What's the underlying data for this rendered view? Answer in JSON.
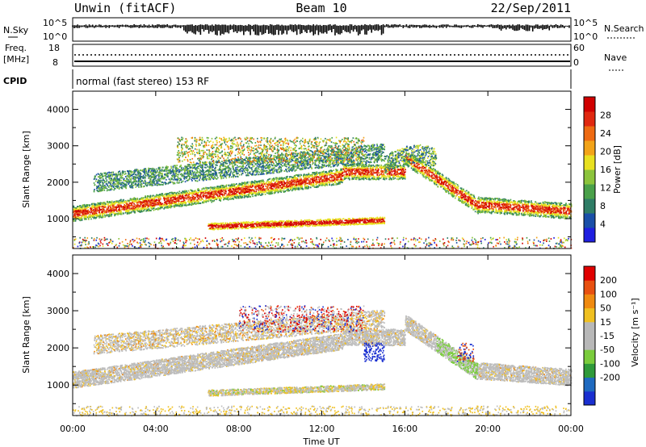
{
  "header": {
    "radar": "Unwin (fitACF)",
    "beam": "Beam 10",
    "date": "22/Sep/2011"
  },
  "top_panels": {
    "nsky_label": "N.Sky",
    "nsearch_label": "N.Search",
    "noise_ticks_left": [
      "10^5",
      "10^0"
    ],
    "noise_ticks_right": [
      "10^5",
      "10^0"
    ],
    "freq_label_1": "Freq.",
    "freq_label_2": "[MHz]",
    "freq_ticks": [
      "18",
      "8"
    ],
    "nave_label": "Nave",
    "nave_ticks": [
      "60",
      "0"
    ],
    "cpid_label": "CPID",
    "cpid_text": "normal (fast stereo) 153 RF"
  },
  "chart_data": [
    {
      "type": "heatmap",
      "name": "power",
      "ylabel": "Slant Range [km]",
      "y_ticks": [
        "1000",
        "2000",
        "3000",
        "4000"
      ],
      "ylim": [
        180,
        4500
      ],
      "xlim_hours": [
        0,
        24
      ],
      "colorbar": {
        "label": "Power [dB]",
        "ticks": [
          "4",
          "8",
          "12",
          "16",
          "20",
          "24",
          "28"
        ],
        "colors": [
          "#1f1fe0",
          "#1a4fa8",
          "#2f7d66",
          "#4aa14a",
          "#8cc43c",
          "#e8e020",
          "#f2a318",
          "#ee6a12",
          "#e02810",
          "#d00000"
        ]
      }
    },
    {
      "type": "heatmap",
      "name": "velocity",
      "ylabel": "Slant Range [km]",
      "y_ticks": [
        "1000",
        "2000",
        "3000",
        "4000"
      ],
      "ylim": [
        180,
        4500
      ],
      "xlim_hours": [
        0,
        24
      ],
      "colorbar": {
        "label": "Velocity [m s⁻¹]",
        "ticks": [
          "200",
          "100",
          "50",
          "15",
          "-15",
          "-50",
          "-100",
          "-200"
        ],
        "colors": [
          "#1a2fd0",
          "#1f6ac0",
          "#2f9a3a",
          "#7acc3c",
          "#b8b8b8",
          "#b8b8b8",
          "#f0c020",
          "#f08a10",
          "#e85010",
          "#e00000"
        ]
      }
    }
  ],
  "x_axis": {
    "ticks": [
      "00:00",
      "04:00",
      "08:00",
      "12:00",
      "16:00",
      "20:00",
      "00:00"
    ],
    "label": "Time UT"
  }
}
